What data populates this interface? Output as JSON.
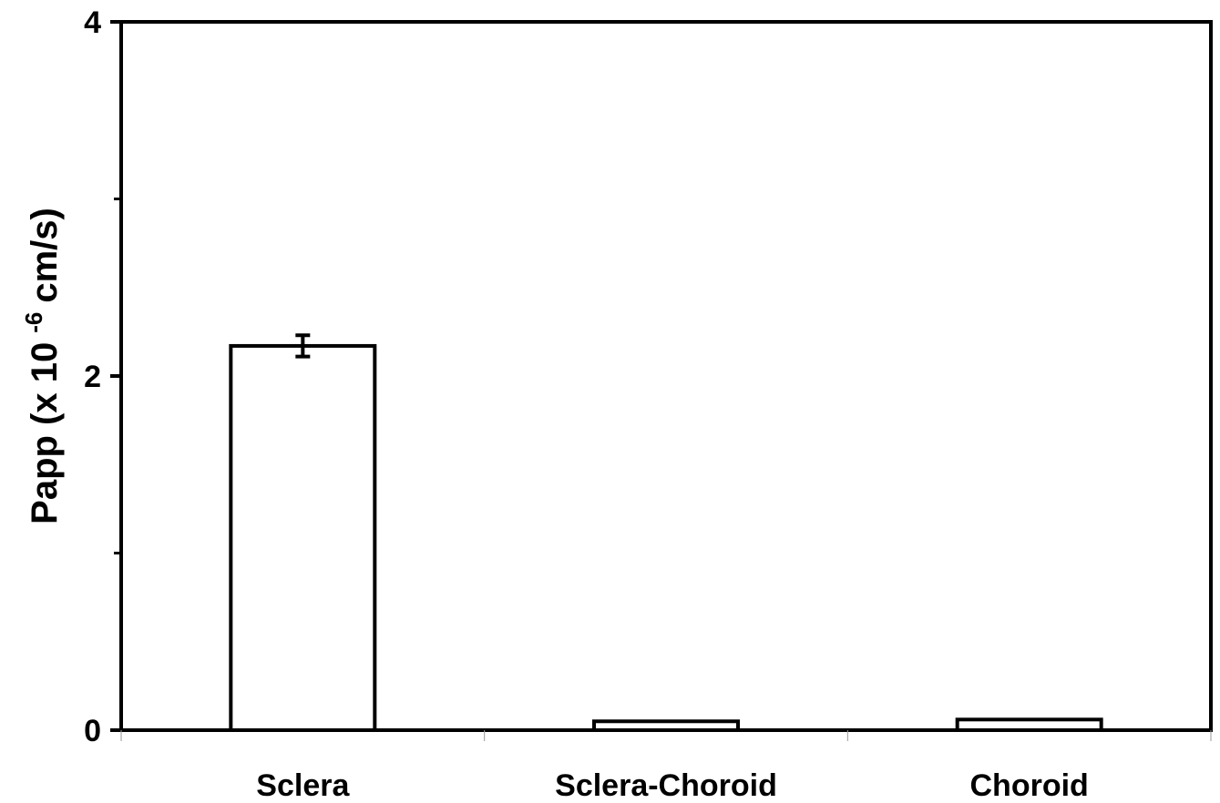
{
  "chart_data": {
    "type": "bar",
    "categories": [
      "Sclera",
      "Sclera-Choroid",
      "Choroid"
    ],
    "values": [
      2.17,
      0.05,
      0.06
    ],
    "errors": [
      0.06,
      0,
      0
    ],
    "ylabel": {
      "main": "Papp (x 10",
      "superscript": "-6",
      "unit": "cm/s)"
    },
    "ylim": [
      0,
      4
    ],
    "yticks_major": [
      0,
      2,
      4
    ],
    "yticks_minor": [
      1,
      3
    ],
    "ytick_labels": [
      "0",
      "2",
      "4"
    ],
    "grid": false,
    "legend": "none",
    "bar_fill": "#ffffff",
    "bar_stroke": "#000000"
  }
}
